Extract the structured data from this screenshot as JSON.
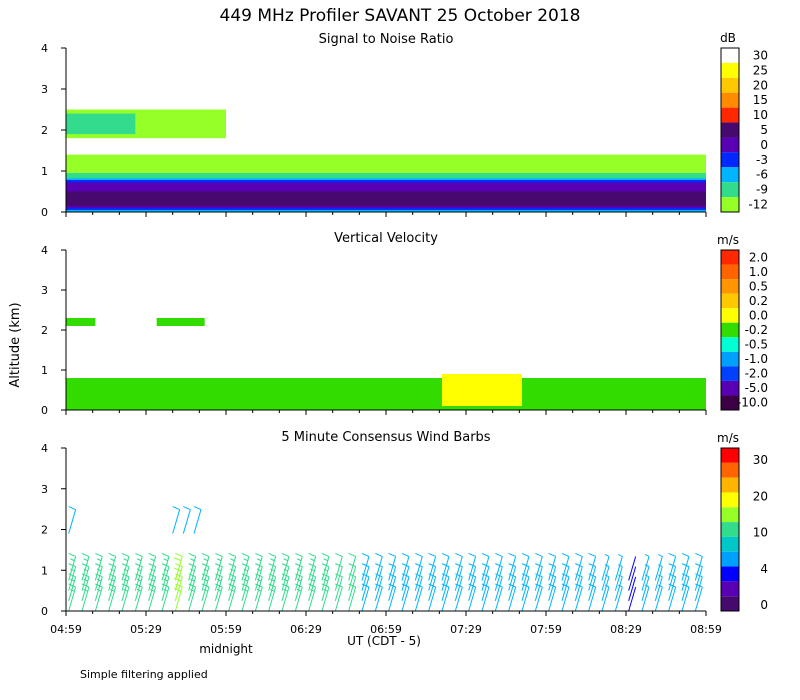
{
  "title": "449 MHz Profiler SAVANT 25 October 2018",
  "y_axis_label": "Altitude (km)",
  "x_axis_label": "UT  (CDT - 5)",
  "midnight_label": "midnight",
  "footnote": "Simple filtering applied",
  "chart_data": [
    {
      "type": "heatmap",
      "title": "Signal to Noise Ratio",
      "unit": "dB",
      "ylim": [
        0,
        4
      ],
      "y_ticks": [
        "0",
        "1",
        "2",
        "3",
        "4"
      ],
      "x_ticks": [
        "04:59",
        "05:29",
        "05:59",
        "06:29",
        "06:59",
        "07:29",
        "07:59",
        "08:29",
        "08:59"
      ],
      "colorbar": {
        "labels": [
          "30",
          "25",
          "20",
          "15",
          "10",
          "5",
          "0",
          "-3",
          "-6",
          "-9",
          "-12"
        ],
        "colors": [
          "#ffffff",
          "#ffff00",
          "#ffc800",
          "#ff8c00",
          "#ff2800",
          "#460a6e",
          "#5a00b4",
          "#0028ff",
          "#00b4ff",
          "#32dc8c",
          "#96ff28"
        ]
      },
      "layers": [
        {
          "level": "-12",
          "color": "#96ff28",
          "x_range": [
            "04:59",
            "08:59"
          ],
          "alt_km": [
            0.0,
            1.4
          ]
        },
        {
          "level": "-9",
          "color": "#32dc8c",
          "x_range": [
            "04:59",
            "08:59"
          ],
          "alt_km": [
            0.0,
            0.95
          ]
        },
        {
          "level": "-6",
          "color": "#00b4ff",
          "x_range": [
            "04:59",
            "08:59"
          ],
          "alt_km": [
            0.0,
            0.82
          ]
        },
        {
          "level": "-3",
          "color": "#0028ff",
          "x_range": [
            "04:59",
            "08:59"
          ],
          "alt_km": [
            0.05,
            0.78
          ]
        },
        {
          "level": "0",
          "color": "#5a00b4",
          "x_range": [
            "04:59",
            "08:59"
          ],
          "alt_km": [
            0.1,
            0.72
          ]
        },
        {
          "level": "5",
          "color": "#460a6e",
          "x_range": [
            "04:59",
            "08:59"
          ],
          "alt_km": [
            0.15,
            0.5
          ]
        },
        {
          "level": "-12",
          "color": "#96ff28",
          "x_range": [
            "04:59",
            "05:59"
          ],
          "alt_km": [
            1.8,
            2.5
          ]
        },
        {
          "level": "-9",
          "color": "#32dc8c",
          "x_range": [
            "04:59",
            "05:25"
          ],
          "alt_km": [
            1.9,
            2.4
          ]
        }
      ]
    },
    {
      "type": "heatmap",
      "title": "Vertical Velocity",
      "unit": "m/s",
      "ylim": [
        0,
        4
      ],
      "y_ticks": [
        "0",
        "1",
        "2",
        "3",
        "4"
      ],
      "x_ticks": [
        "04:59",
        "05:29",
        "05:59",
        "06:29",
        "06:59",
        "07:29",
        "07:59",
        "08:29",
        "08:59"
      ],
      "colorbar": {
        "labels": [
          "2.0",
          "1.0",
          "0.5",
          "0.2",
          "0.0",
          "-0.2",
          "-0.5",
          "-1.0",
          "-2.0",
          "-5.0",
          "-10.0"
        ],
        "colors": [
          "#ff2800",
          "#ff6400",
          "#ff9600",
          "#ffc800",
          "#ffff00",
          "#32dc00",
          "#00ffd2",
          "#00a0ff",
          "#0040ff",
          "#5a00b4",
          "#3c0046"
        ]
      },
      "layers": [
        {
          "level": "-0.2",
          "color": "#32dc00",
          "x_range": [
            "04:59",
            "08:59"
          ],
          "alt_km": [
            0.0,
            0.8
          ]
        },
        {
          "level": "0.0",
          "color": "#ffff00",
          "x_range": [
            "07:20",
            "07:50"
          ],
          "alt_km": [
            0.1,
            0.9
          ]
        },
        {
          "level": "-0.2",
          "color": "#32dc00",
          "x_range": [
            "04:59",
            "05:10"
          ],
          "alt_km": [
            2.1,
            2.3
          ]
        },
        {
          "level": "-0.2",
          "color": "#32dc00",
          "x_range": [
            "05:33",
            "05:51"
          ],
          "alt_km": [
            2.1,
            2.3
          ]
        }
      ]
    },
    {
      "type": "wind_barbs",
      "title": "5 Minute Consensus Wind Barbs",
      "unit": "m/s",
      "ylim": [
        0,
        4
      ],
      "y_ticks": [
        "0",
        "1",
        "2",
        "3",
        "4"
      ],
      "x_ticks": [
        "04:59",
        "05:29",
        "05:59",
        "06:29",
        "06:59",
        "07:29",
        "07:59",
        "08:29",
        "08:59"
      ],
      "colorbar": {
        "labels": [
          "30",
          "20",
          "10",
          "4",
          "0"
        ],
        "colors": [
          "#ff0000",
          "#ff6400",
          "#ffb400",
          "#ffff00",
          "#96ff28",
          "#32dc8c",
          "#00c8c8",
          "#00a0ff",
          "#0000ff",
          "#5a00b4",
          "#460a6e"
        ]
      },
      "barb_levels_km": [
        0.0,
        0.25,
        0.5,
        0.75
      ],
      "barb_times": [
        "05:00",
        "05:05",
        "05:10",
        "05:15",
        "05:20",
        "05:25",
        "05:30",
        "05:35",
        "05:40",
        "05:45",
        "05:50",
        "05:55",
        "06:00",
        "06:05",
        "06:10",
        "06:15",
        "06:20",
        "06:25",
        "06:30",
        "06:35",
        "06:40",
        "06:45",
        "06:50",
        "06:55",
        "07:00",
        "07:05",
        "07:10",
        "07:15",
        "07:20",
        "07:25",
        "07:30",
        "07:35",
        "07:40",
        "07:45",
        "07:50",
        "07:55",
        "08:00",
        "08:05",
        "08:10",
        "08:15",
        "08:20",
        "08:25",
        "08:30",
        "08:35",
        "08:40",
        "08:45",
        "08:50",
        "08:55"
      ],
      "barb_speeds_ms": [
        8,
        8,
        9,
        9,
        9,
        8,
        9,
        9,
        10,
        9,
        9,
        9,
        8,
        8,
        9,
        8,
        8,
        8,
        9,
        8,
        7,
        7,
        6,
        6,
        6,
        5,
        5,
        5,
        6,
        6,
        6,
        6,
        5,
        5,
        5,
        6,
        6,
        5,
        5,
        5,
        4,
        4,
        2,
        4,
        4,
        5,
        5,
        6
      ],
      "upper_barbs": [
        {
          "time": "05:00",
          "alt_km": 1.9,
          "speed_ms": 6
        },
        {
          "time": "05:39",
          "alt_km": 1.9,
          "speed_ms": 6
        },
        {
          "time": "05:43",
          "alt_km": 1.9,
          "speed_ms": 6
        },
        {
          "time": "05:47",
          "alt_km": 1.9,
          "speed_ms": 6
        }
      ]
    }
  ]
}
